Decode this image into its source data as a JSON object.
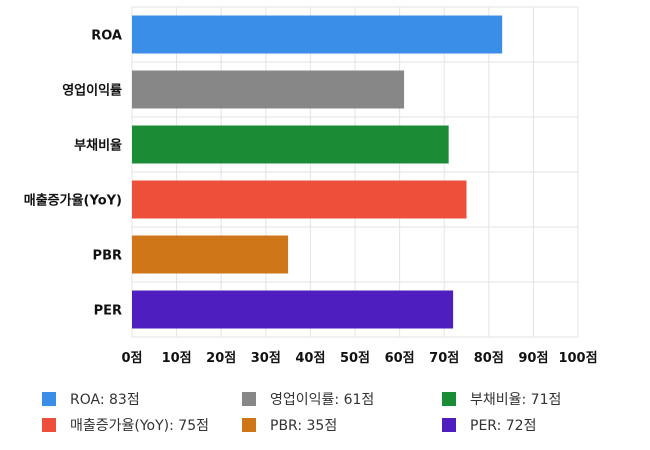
{
  "chart_data": {
    "type": "bar",
    "orientation": "horizontal",
    "categories": [
      "ROA",
      "영업이익률",
      "부채비율",
      "매출증가율(YoY)",
      "PBR",
      "PER"
    ],
    "values": [
      83,
      61,
      71,
      75,
      35,
      72
    ],
    "colors": [
      "#3b8ee8",
      "#878787",
      "#1a8c35",
      "#ee4f3a",
      "#cf7619",
      "#4f1ebf"
    ],
    "xlim": [
      0,
      100
    ],
    "x_ticks": [
      0,
      10,
      20,
      30,
      40,
      50,
      60,
      70,
      80,
      90,
      100
    ],
    "x_tick_suffix": "점",
    "grid": true,
    "legend_placement": "bottom",
    "legend": [
      "ROA: 83점",
      "영업이익률: 61점",
      "부채비율: 71점",
      "매출증가율(YoY): 75점",
      "PBR: 35점",
      "PER: 72점"
    ]
  }
}
